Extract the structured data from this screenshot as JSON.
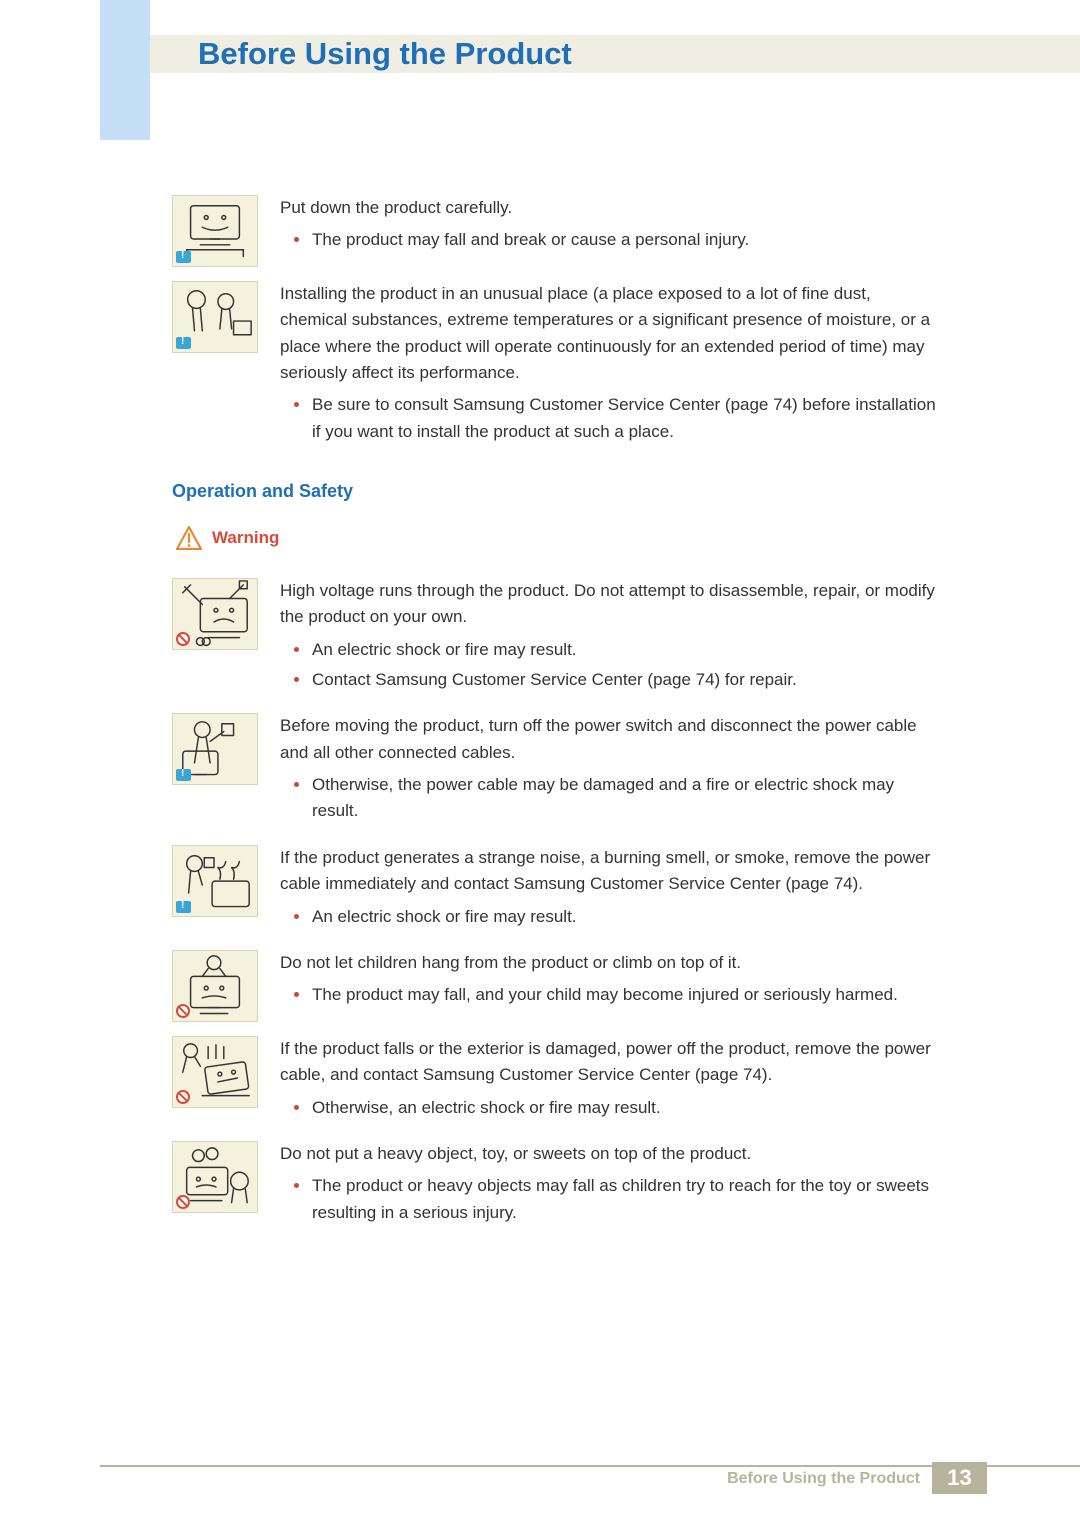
{
  "header": {
    "title": "Before Using the Product"
  },
  "items_top": [
    {
      "badge": "info",
      "svg": "monitor-stand",
      "intro": "Put down the product carefully.",
      "bullets": [
        "The product may fall and break or cause a personal injury."
      ]
    },
    {
      "badge": "info",
      "svg": "person-install",
      "intro": "Installing the product in an unusual place (a place exposed to a lot of fine dust, chemical substances, extreme temperatures or a significant presence of moisture, or a place where the product will operate continuously for an extended period of time) may seriously affect its performance.",
      "bullets": [
        "Be sure to consult Samsung Customer Service Center (page 74) before installation if you want to install the product at such a place."
      ]
    }
  ],
  "section": {
    "heading": "Operation and Safety",
    "warning_label": "Warning"
  },
  "items_bottom": [
    {
      "badge": "prohibit",
      "svg": "tools-monitor",
      "intro": "High voltage runs through the product. Do not attempt to disassemble, repair, or modify the product on your own.",
      "bullets": [
        "An electric shock or fire may result.",
        "Contact Samsung Customer Service Center (page 74) for repair."
      ]
    },
    {
      "badge": "info",
      "svg": "person-unplug",
      "intro": "Before moving the product, turn off the power switch and disconnect the power cable and all other connected cables.",
      "bullets": [
        "Otherwise, the power cable may be damaged and a fire or electric shock may result."
      ]
    },
    {
      "badge": "info",
      "svg": "person-smoke",
      "intro": "If the product generates a strange noise, a burning smell, or smoke, remove the power cable immediately and contact Samsung Customer Service Center (page 74).",
      "bullets": [
        "An electric shock or fire may result."
      ]
    },
    {
      "badge": "prohibit",
      "svg": "child-climb",
      "intro": "Do not let children hang from the product or climb on top of it.",
      "bullets": [
        "The product may fall, and your child may become injured or seriously harmed."
      ]
    },
    {
      "badge": "prohibit",
      "svg": "falling-monitor",
      "intro": "If the product falls or the exterior is damaged, power off the product, remove the power cable, and contact Samsung Customer Service Center (page 74).",
      "bullets": [
        "Otherwise, an electric shock or fire may result."
      ]
    },
    {
      "badge": "prohibit",
      "svg": "heavy-object",
      "intro": "Do not put a heavy object, toy, or sweets on top of the product.",
      "bullets": [
        "The product or heavy objects may fall as children try to reach for the toy or sweets resulting in a serious injury."
      ]
    }
  ],
  "footer": {
    "text": "Before Using the Product",
    "page": "13"
  },
  "colors": {
    "title": "#1f6fb8",
    "left_bar": "#c4dff6",
    "header_band": "#f0eee2",
    "icon_bg": "#f4f1dc",
    "bullet": "#c9483a",
    "warning": "#d84a3a",
    "footer": "#b7b39d"
  }
}
